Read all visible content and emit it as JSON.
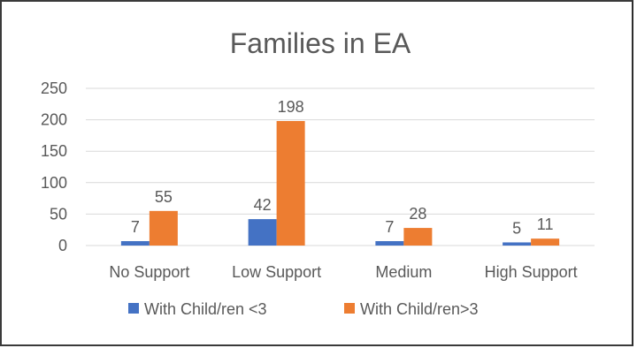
{
  "chart_data": {
    "type": "bar",
    "title": "Families in EA",
    "categories": [
      "No Support",
      "Low Support",
      "Medium",
      "High Support"
    ],
    "series": [
      {
        "name": "With Child/ren <3",
        "values": [
          7,
          42,
          7,
          5
        ],
        "color": "#4472c4"
      },
      {
        "name": "With Child/ren>3",
        "values": [
          55,
          198,
          28,
          11
        ],
        "color": "#ed7d31"
      }
    ],
    "data_labels": [
      [
        "7",
        "42",
        "7",
        "5"
      ],
      [
        "55",
        "198",
        "28",
        "11"
      ]
    ],
    "ylim": [
      0,
      250
    ],
    "yticks": [
      "0",
      "50",
      "100",
      "150",
      "200",
      "250"
    ],
    "grid": true,
    "legend": "bottom",
    "colors": {
      "axis": "#d9d9d9",
      "grid": "#d9d9d9",
      "text": "#595959",
      "title": "#595959"
    }
  }
}
